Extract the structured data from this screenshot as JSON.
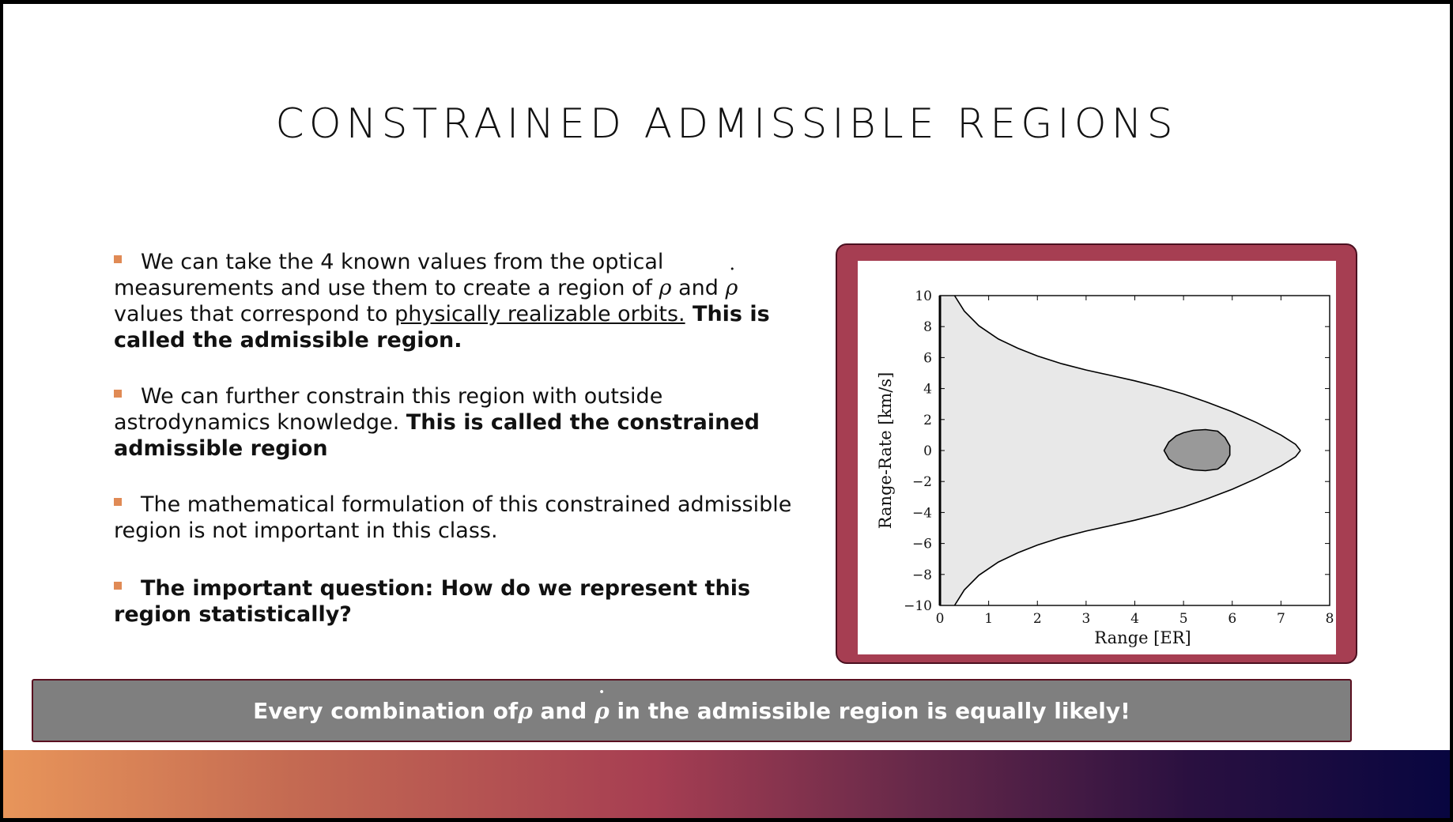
{
  "slide": {
    "title": "CONSTRAINED ADMISSIBLE REGIONS",
    "bullets": [
      {
        "p1": "We can take the 4 known values from the optical measurements and use them to create a region of ",
        "sym1": "ρ",
        "p2": " and ",
        "sym2": "ρ",
        "p3": " values that correspond to ",
        "underline": "physically realizable orbits.",
        "bold": " This is called the admissible region."
      },
      {
        "plain": "We can further constrain this region with outside astrodynamics knowledge. ",
        "bold": "This is called the constrained admissible region"
      },
      {
        "plain": "The mathematical formulation of this constrained admissible region is not important in this class."
      },
      {
        "bold": "The important question: How do we represent this region statistically?"
      }
    ],
    "callout": {
      "p1": "Every combination of ",
      "sym1": "ρ",
      "p2": " and ",
      "sym2": "ρ",
      "p3": " in the admissible region is equally likely!"
    },
    "colors": {
      "frame": "#a63e52",
      "callout_bg": "#7f7f7f",
      "bullet_marker": "#e08a55",
      "gradient_start": "#e8955a",
      "gradient_end": "#080640"
    }
  },
  "chart_data": {
    "type": "area",
    "xlabel": "Range [ER]",
    "ylabel": "Range-Rate [km/s]",
    "xlim": [
      0,
      8
    ],
    "ylim": [
      -10,
      10
    ],
    "xticks": [
      "0",
      "1",
      "2",
      "3",
      "4",
      "5",
      "6",
      "7",
      "8"
    ],
    "yticks": [
      "10",
      "8",
      "6",
      "4",
      "2",
      "0",
      "−2",
      "−4",
      "−6",
      "−8",
      "−10"
    ],
    "grid": false,
    "series": [
      {
        "role": "admissible-region",
        "x": [
          0.3,
          0.5,
          0.8,
          1.2,
          1.6,
          2.0,
          2.5,
          3.0,
          3.5,
          4.0,
          4.5,
          5.0,
          5.5,
          6.0,
          6.5,
          7.0,
          7.3,
          7.4
        ],
        "y_upper": [
          10.0,
          9.0,
          8.05,
          7.2,
          6.6,
          6.1,
          5.6,
          5.2,
          4.85,
          4.5,
          4.1,
          3.65,
          3.1,
          2.5,
          1.8,
          1.0,
          0.4,
          0.0
        ],
        "fill": "#e8e8e8"
      },
      {
        "role": "constrained-region",
        "x": [
          4.6,
          4.7,
          4.85,
          5.0,
          5.2,
          5.45,
          5.7,
          5.85,
          5.95,
          5.95,
          5.85,
          5.7,
          5.45,
          5.2,
          5.0,
          4.85,
          4.7,
          4.6
        ],
        "y": [
          0.0,
          0.55,
          0.95,
          1.15,
          1.3,
          1.35,
          1.25,
          0.85,
          0.3,
          -0.3,
          -0.85,
          -1.2,
          -1.3,
          -1.25,
          -1.1,
          -0.9,
          -0.55,
          0.0
        ],
        "fill": "#999999"
      }
    ]
  }
}
